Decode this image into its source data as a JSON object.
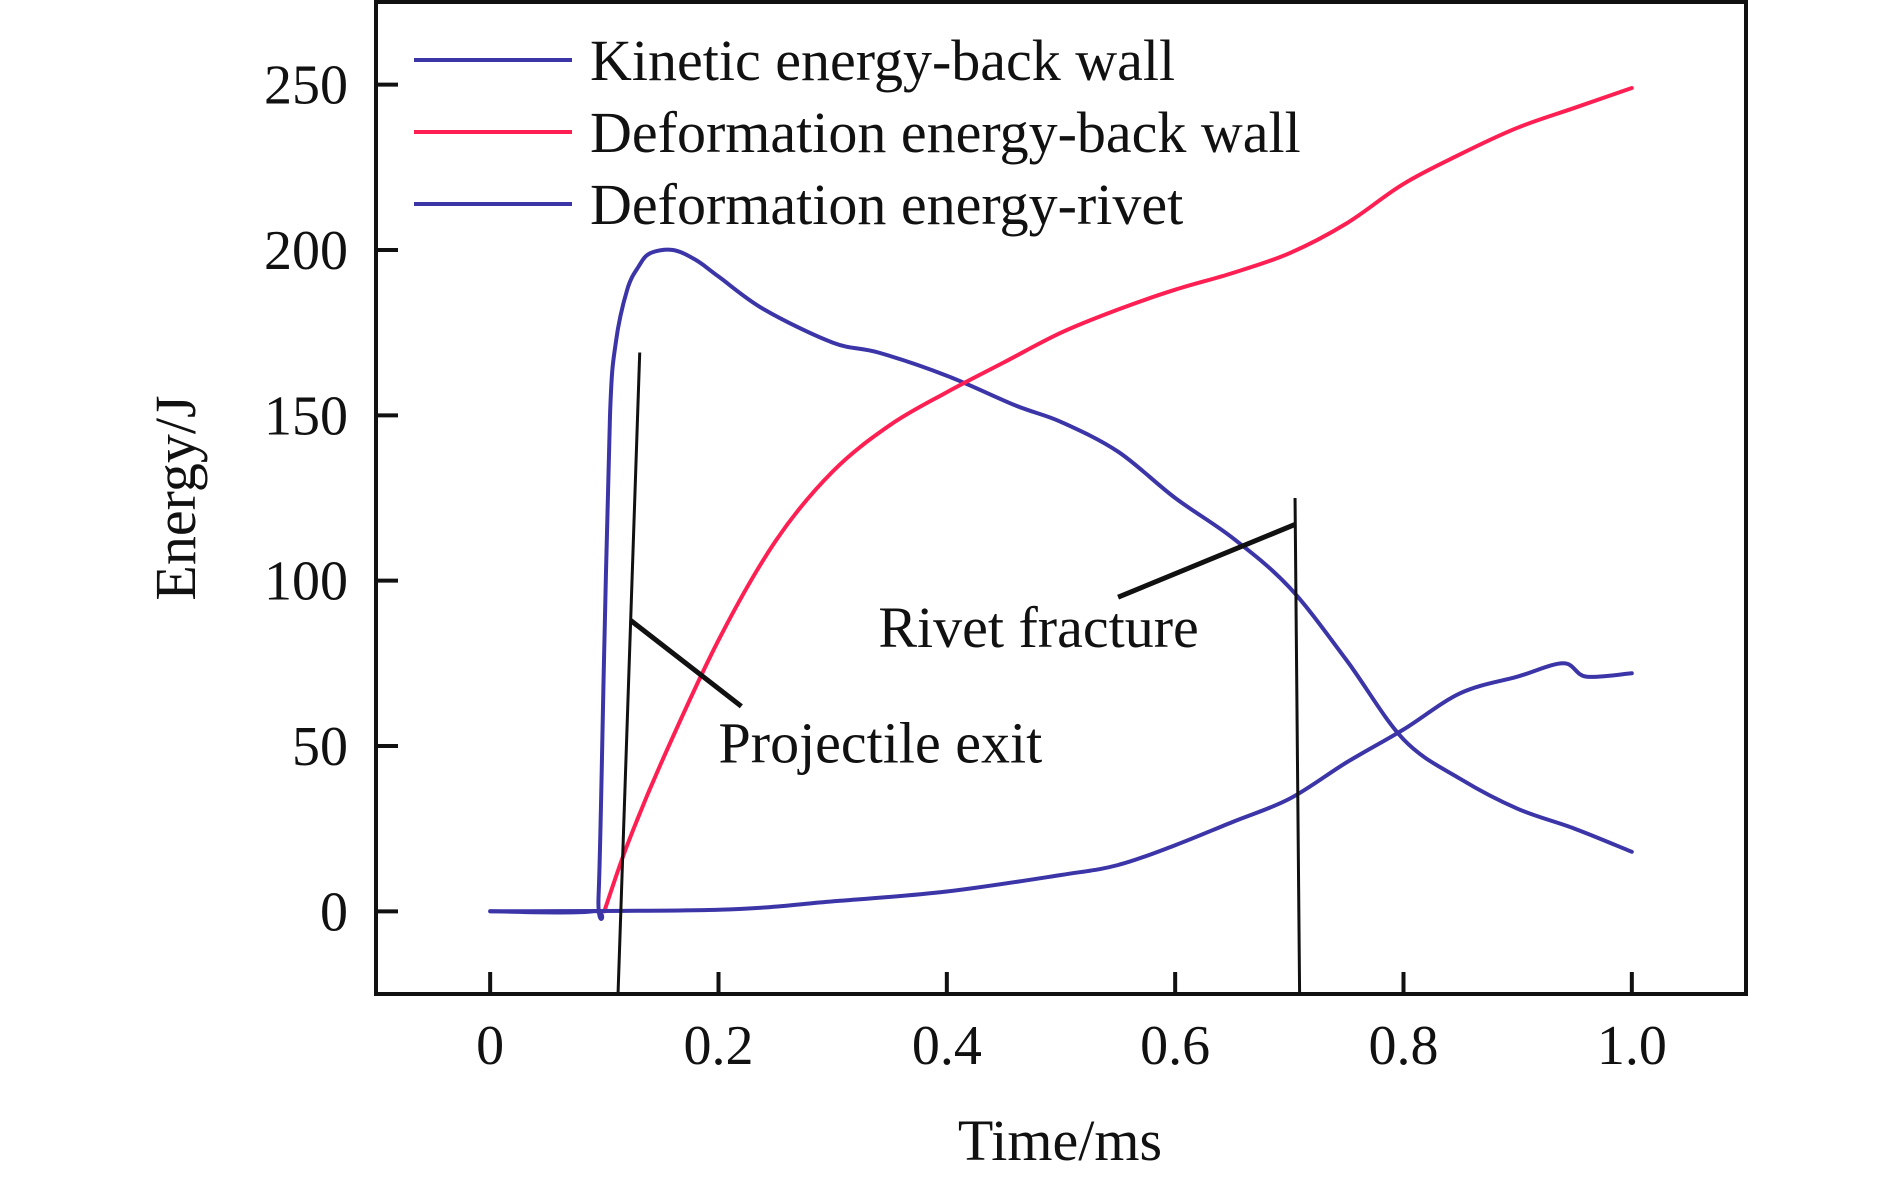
{
  "chart_data": {
    "type": "line",
    "title": "",
    "xlabel": "Time/ms",
    "ylabel": "Energy/J",
    "xlim": [
      -0.1,
      1.1
    ],
    "ylim": [
      -25,
      275
    ],
    "x_ticks": [
      0,
      0.2,
      0.4,
      0.6,
      0.8,
      1.0
    ],
    "x_tick_labels": [
      "0",
      "0.2",
      "0.4",
      "0.6",
      "0.8",
      "1.0"
    ],
    "y_ticks": [
      0,
      50,
      100,
      150,
      200,
      250
    ],
    "y_tick_labels": [
      "0",
      "50",
      "100",
      "150",
      "200",
      "250"
    ],
    "grid": false,
    "legend_position": "top-left",
    "series": [
      {
        "name": "Kinetic energy-back wall",
        "color": "#3b35a8",
        "points": [
          [
            0,
            0
          ],
          [
            0.09,
            0
          ],
          [
            0.095,
            5
          ],
          [
            0.1,
            80
          ],
          [
            0.105,
            150
          ],
          [
            0.11,
            172
          ],
          [
            0.12,
            188
          ],
          [
            0.13,
            195
          ],
          [
            0.14,
            199
          ],
          [
            0.16,
            200
          ],
          [
            0.18,
            197
          ],
          [
            0.2,
            192
          ],
          [
            0.24,
            182
          ],
          [
            0.3,
            172
          ],
          [
            0.34,
            169
          ],
          [
            0.4,
            162
          ],
          [
            0.46,
            153
          ],
          [
            0.5,
            148
          ],
          [
            0.55,
            139
          ],
          [
            0.6,
            125
          ],
          [
            0.65,
            113
          ],
          [
            0.7,
            98
          ],
          [
            0.75,
            76
          ],
          [
            0.8,
            52
          ],
          [
            0.85,
            40
          ],
          [
            0.9,
            31
          ],
          [
            0.95,
            25
          ],
          [
            1.0,
            18
          ]
        ]
      },
      {
        "name": "Deformation energy-back wall",
        "color": "#ff1f52",
        "points": [
          [
            0.1,
            0
          ],
          [
            0.12,
            20
          ],
          [
            0.15,
            45
          ],
          [
            0.2,
            82
          ],
          [
            0.25,
            112
          ],
          [
            0.3,
            133
          ],
          [
            0.35,
            147
          ],
          [
            0.4,
            157
          ],
          [
            0.45,
            166
          ],
          [
            0.5,
            175
          ],
          [
            0.55,
            182
          ],
          [
            0.6,
            188
          ],
          [
            0.65,
            193
          ],
          [
            0.7,
            199
          ],
          [
            0.75,
            208
          ],
          [
            0.8,
            220
          ],
          [
            0.85,
            229
          ],
          [
            0.9,
            237
          ],
          [
            0.95,
            243
          ],
          [
            1.0,
            249
          ]
        ]
      },
      {
        "name": "Deformation energy-rivet",
        "color": "#3b35a8",
        "points": [
          [
            0,
            0
          ],
          [
            0.2,
            0.5
          ],
          [
            0.3,
            3
          ],
          [
            0.4,
            6
          ],
          [
            0.5,
            11
          ],
          [
            0.55,
            14
          ],
          [
            0.6,
            20
          ],
          [
            0.65,
            27
          ],
          [
            0.7,
            34
          ],
          [
            0.75,
            45
          ],
          [
            0.8,
            55
          ],
          [
            0.85,
            66
          ],
          [
            0.9,
            71
          ],
          [
            0.94,
            75
          ],
          [
            0.96,
            71
          ],
          [
            1.0,
            72
          ]
        ]
      }
    ],
    "annotations": [
      {
        "text": "Projectile exit",
        "color": "#111111",
        "vline": [
          [
            0.112,
            -25
          ],
          [
            0.131,
            169
          ]
        ],
        "leader": [
          [
            0.22,
            62
          ],
          [
            0.123,
            88
          ]
        ],
        "text_at": [
          0.2,
          45
        ]
      },
      {
        "text": "Rivet fracture",
        "color": "#111111",
        "vline": [
          [
            0.709,
            -25
          ],
          [
            0.705,
            125
          ]
        ],
        "leader": [
          [
            0.55,
            95
          ],
          [
            0.705,
            117
          ]
        ],
        "text_at": [
          0.34,
          80
        ]
      }
    ]
  }
}
